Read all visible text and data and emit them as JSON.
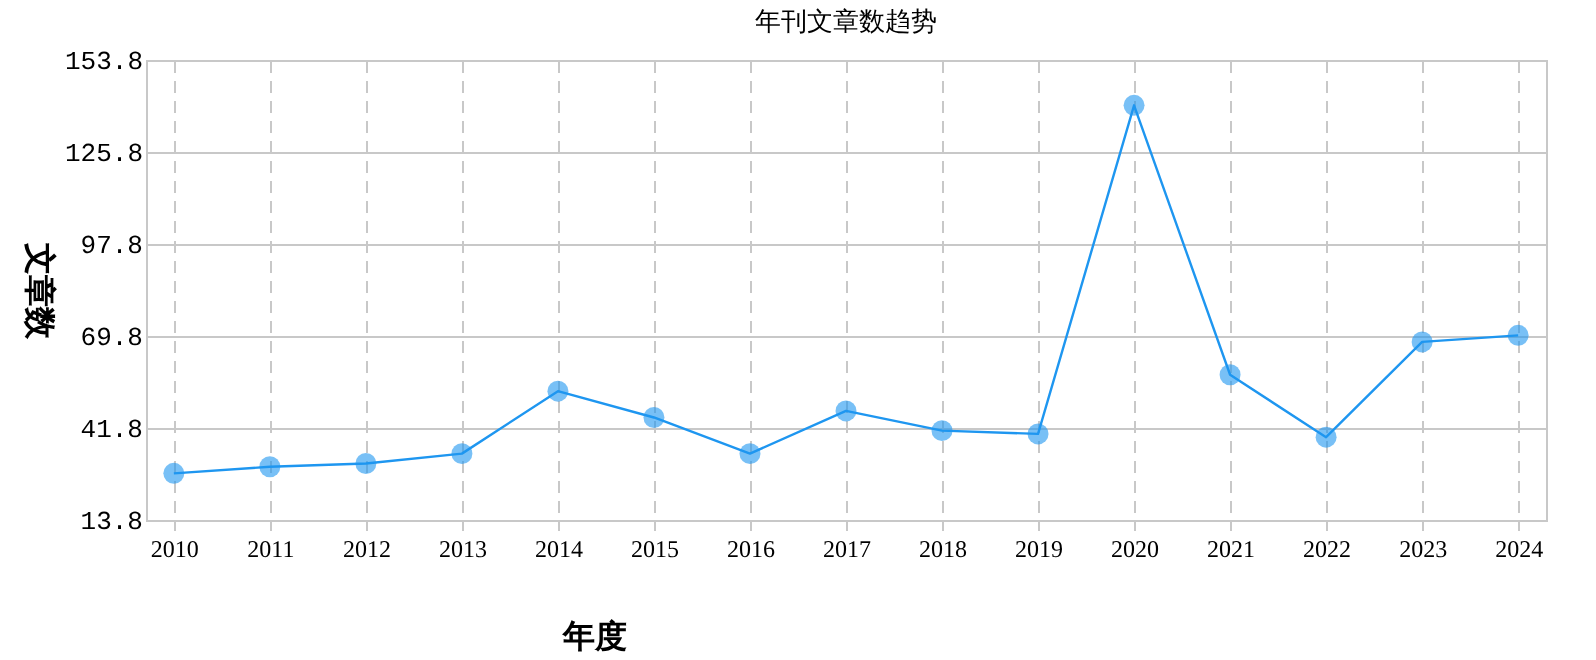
{
  "chart_data": {
    "type": "line",
    "title": "年刊文章数趋势",
    "xlabel": "年度",
    "ylabel": "文章数",
    "categories": [
      "2010",
      "2011",
      "2012",
      "2013",
      "2014",
      "2015",
      "2016",
      "2017",
      "2018",
      "2019",
      "2020",
      "2021",
      "2022",
      "2023",
      "2024"
    ],
    "series": [
      {
        "color": "#1e96f0",
        "values": [
          28,
          30,
          31,
          34,
          53,
          45,
          34,
          47,
          41,
          40,
          140,
          58,
          39,
          68,
          70
        ]
      }
    ],
    "ylim": [
      13.8,
      153.8
    ],
    "yticks": [
      13.8,
      41.8,
      69.8,
      97.8,
      125.8,
      153.8
    ],
    "grid": true,
    "marker": "circle",
    "line_style": "solid"
  }
}
